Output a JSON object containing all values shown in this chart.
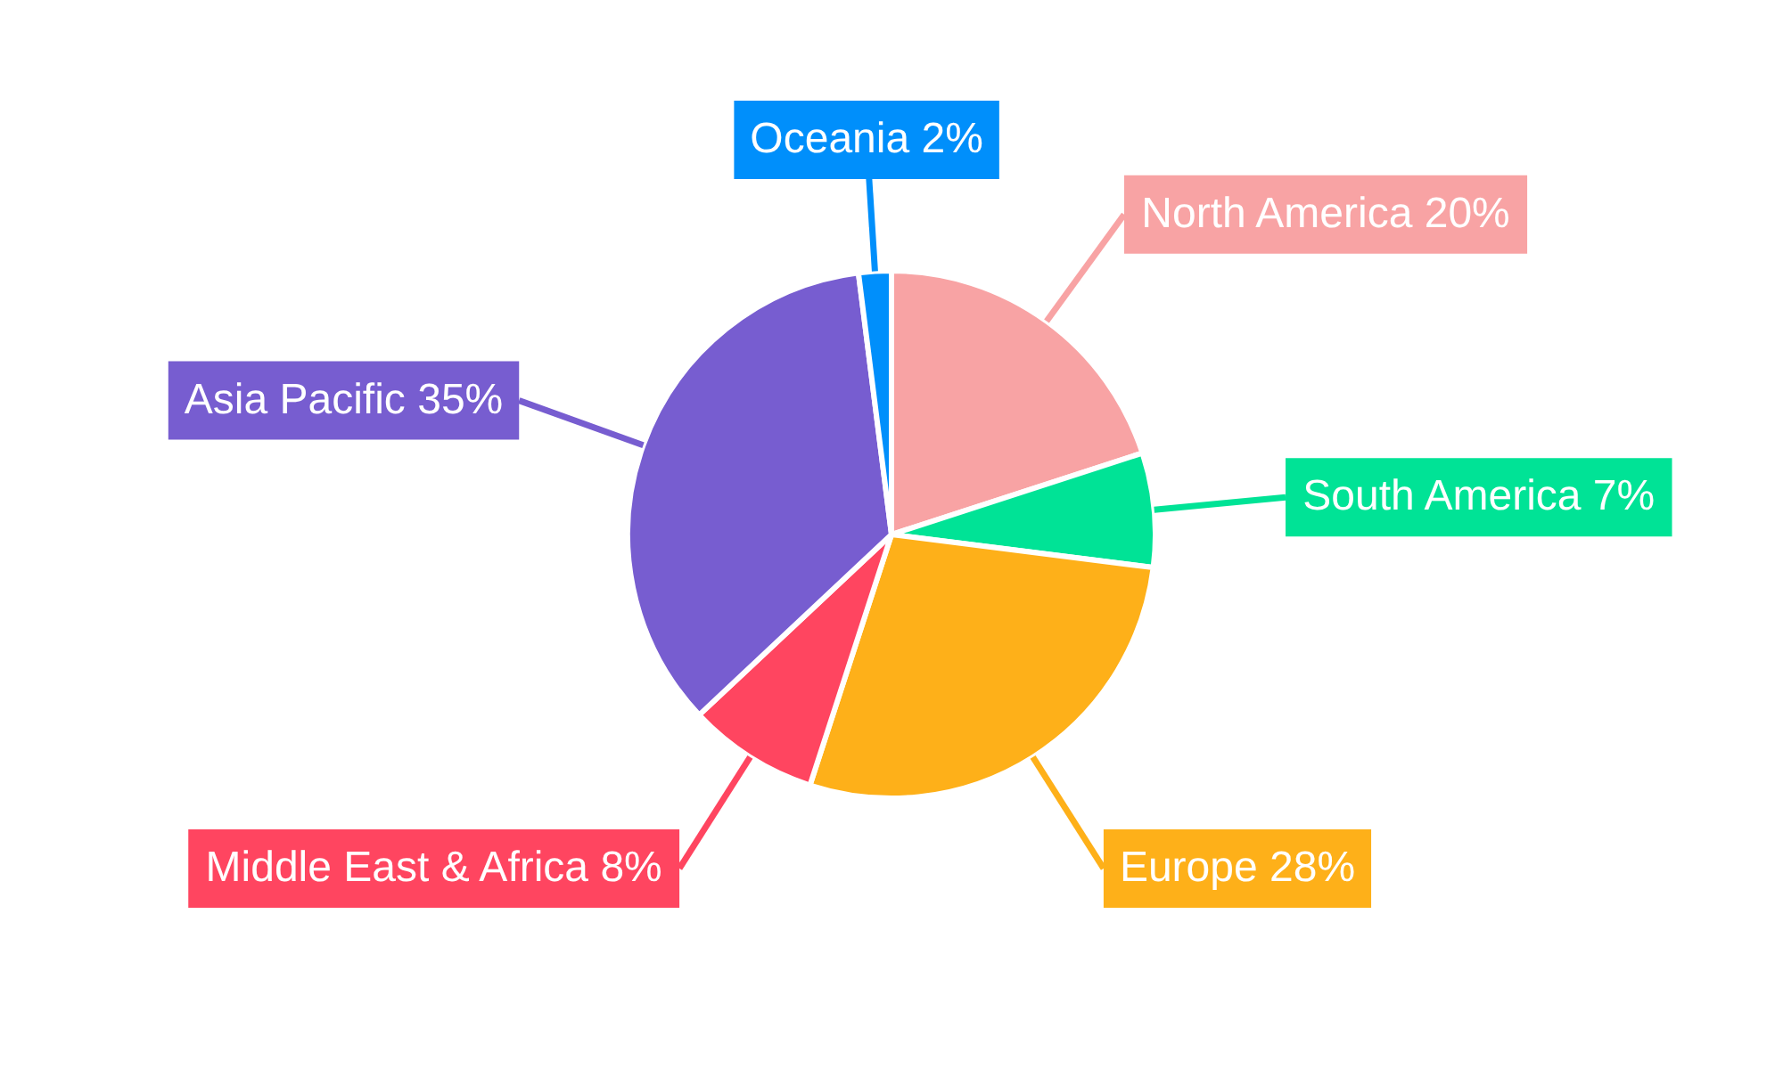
{
  "chart_data": {
    "type": "pie",
    "categories": [
      "North America",
      "South America",
      "Europe",
      "Middle East & Africa",
      "Asia Pacific",
      "Oceania"
    ],
    "values": [
      20,
      7,
      28,
      8,
      35,
      2
    ],
    "colors": [
      "#f8a3a4",
      "#00e396",
      "#feb019",
      "#ff4560",
      "#775dd0",
      "#008ffb"
    ],
    "value_labels": [
      "20%",
      "7%",
      "28%",
      "8%",
      "35%",
      "2%"
    ]
  }
}
